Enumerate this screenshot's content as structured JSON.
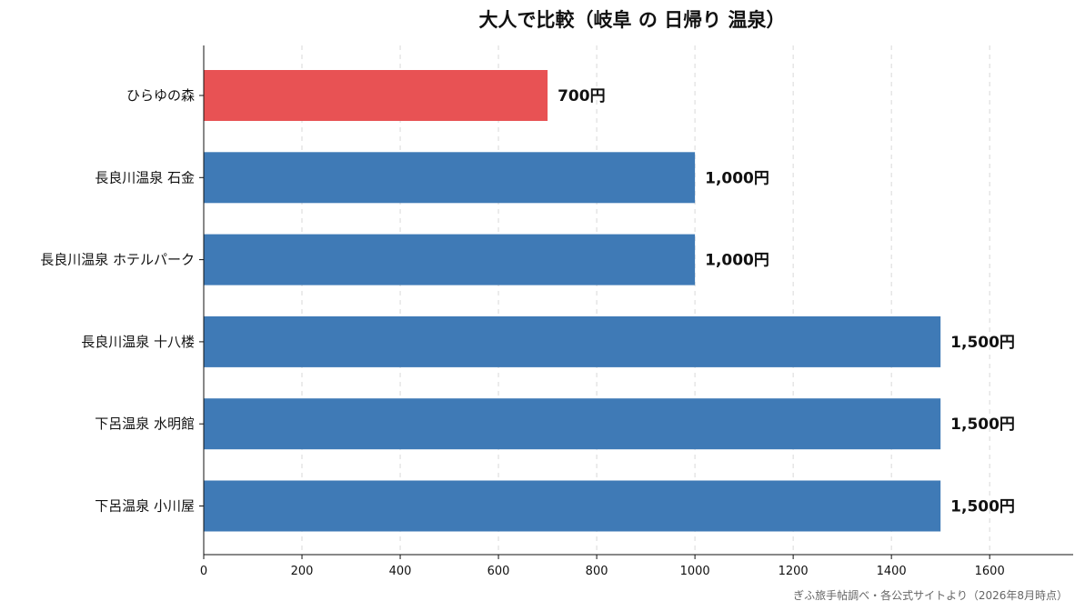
{
  "chart_data": {
    "type": "bar",
    "orientation": "horizontal",
    "title": "大人で比較（岐阜 の 日帰り 温泉）",
    "categories": [
      "ひらゆの森",
      "長良川温泉 石金",
      "長良川温泉 ホテルパーク",
      "長良川温泉 十八楼",
      "下呂温泉 水明館",
      "下呂温泉 小川屋"
    ],
    "values": [
      700,
      1000,
      1000,
      1500,
      1500,
      1500
    ],
    "data_labels": [
      "700円",
      "1,000円",
      "1,000円",
      "1,500円",
      "1,500円",
      "1,500円"
    ],
    "highlight_index": 0,
    "colors": {
      "highlight": "#e85254",
      "default": "#3f7ab6"
    },
    "xlim": [
      0,
      1770
    ],
    "xticks": [
      0,
      200,
      400,
      600,
      800,
      1000,
      1200,
      1400,
      1600
    ],
    "grid": "vertical-dashed",
    "xlabel": "",
    "ylabel": ""
  },
  "source_note": "ぎふ旅手帖調べ・各公式サイトより（2026年8月時点）"
}
